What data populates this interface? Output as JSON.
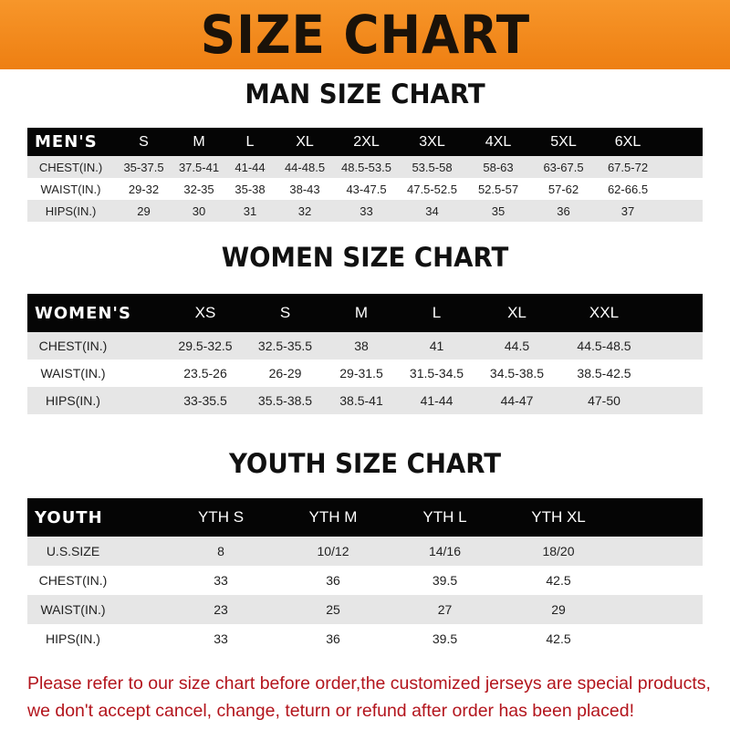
{
  "title": "SIZE CHART",
  "colors": {
    "banner": "#f08a1c",
    "header_row": "#050505",
    "stripe": "#e6e6e6",
    "notice": "#b3141c"
  },
  "men": {
    "title": "MAN SIZE CHART",
    "header": [
      "MEN'S",
      "S",
      "M",
      "L",
      "XL",
      "2XL",
      "3XL",
      "4XL",
      "5XL",
      "6XL"
    ],
    "rows": [
      [
        "CHEST(IN.)",
        "35-37.5",
        "37.5-41",
        "41-44",
        "44-48.5",
        "48.5-53.5",
        "53.5-58",
        "58-63",
        "63-67.5",
        "67.5-72"
      ],
      [
        "WAIST(IN.)",
        "29-32",
        "32-35",
        "35-38",
        "38-43",
        "43-47.5",
        "47.5-52.5",
        "52.5-57",
        "57-62",
        "62-66.5"
      ],
      [
        "HIPS(IN.)",
        "29",
        "30",
        "31",
        "32",
        "33",
        "34",
        "35",
        "36",
        "37"
      ]
    ]
  },
  "women": {
    "title": "WOMEN SIZE CHART",
    "header": [
      "WOMEN'S",
      "XS",
      "S",
      "M",
      "L",
      "XL",
      "XXL"
    ],
    "rows": [
      [
        "CHEST(IN.)",
        "29.5-32.5",
        "32.5-35.5",
        "38",
        "41",
        "44.5",
        "44.5-48.5"
      ],
      [
        "WAIST(IN.)",
        "23.5-26",
        "26-29",
        "29-31.5",
        "31.5-34.5",
        "34.5-38.5",
        "38.5-42.5"
      ],
      [
        "HIPS(IN.)",
        "33-35.5",
        "35.5-38.5",
        "38.5-41",
        "41-44",
        "44-47",
        "47-50"
      ]
    ]
  },
  "youth": {
    "title": "YOUTH SIZE CHART",
    "header": [
      "YOUTH",
      "YTH S",
      "YTH M",
      "YTH L",
      "YTH XL"
    ],
    "rows": [
      [
        "U.S.SIZE",
        "8",
        "10/12",
        "14/16",
        "18/20"
      ],
      [
        "CHEST(IN.)",
        "33",
        "36",
        "39.5",
        "42.5"
      ],
      [
        "WAIST(IN.)",
        "23",
        "25",
        "27",
        "29"
      ],
      [
        "HIPS(IN.)",
        "33",
        "36",
        "39.5",
        "42.5"
      ]
    ]
  },
  "notice": [
    "Please refer to our size chart before order,the customized jerseys are special products,",
    "we don't accept cancel, change, teturn or refund after order has been placed!"
  ]
}
